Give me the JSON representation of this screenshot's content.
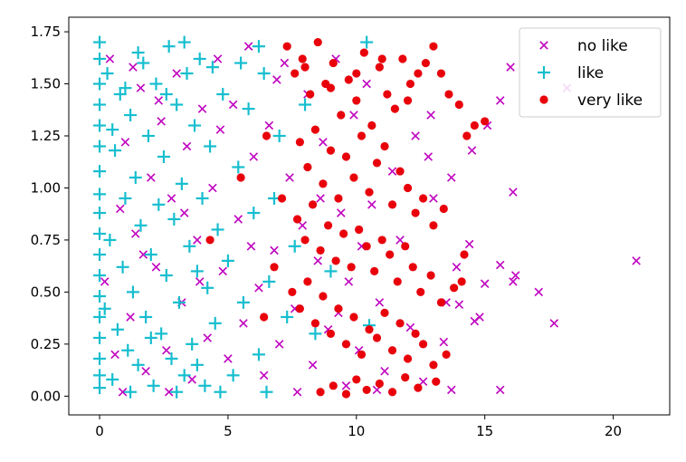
{
  "chart_data": {
    "type": "scatter",
    "title": "",
    "xlabel": "",
    "ylabel": "",
    "xlim": [
      -1.2,
      22.2
    ],
    "ylim": [
      -0.09,
      1.82
    ],
    "grid": false,
    "legend_position": "top-right",
    "x_ticks": [
      0,
      5,
      10,
      15,
      20
    ],
    "x_tick_labels": [
      "0",
      "5",
      "10",
      "15",
      "20"
    ],
    "y_ticks": [
      0.0,
      0.25,
      0.5,
      0.75,
      1.0,
      1.25,
      1.5,
      1.75
    ],
    "y_tick_labels": [
      "0.00",
      "0.25",
      "0.50",
      "0.75",
      "1.00",
      "1.25",
      "1.50",
      "1.75"
    ],
    "series": [
      {
        "name": "no like",
        "marker": "x",
        "color": "#bf00bf",
        "points": [
          [
            20.9,
            0.65
          ],
          [
            18.2,
            1.48
          ],
          [
            17.7,
            0.35
          ],
          [
            17.1,
            0.5
          ],
          [
            16.2,
            0.58
          ],
          [
            16.1,
            0.55
          ],
          [
            16.1,
            0.98
          ],
          [
            16.0,
            1.58
          ],
          [
            15.6,
            0.03
          ],
          [
            15.6,
            0.63
          ],
          [
            15.6,
            1.42
          ],
          [
            15.0,
            0.54
          ],
          [
            15.1,
            1.3
          ],
          [
            14.8,
            0.38
          ],
          [
            14.6,
            0.36
          ],
          [
            14.5,
            1.18
          ],
          [
            14.4,
            0.73
          ],
          [
            14.0,
            0.44
          ],
          [
            13.9,
            0.62
          ],
          [
            13.7,
            1.05
          ],
          [
            13.7,
            0.03
          ],
          [
            13.5,
            0.45
          ],
          [
            13.4,
            0.26
          ],
          [
            13.0,
            0.95
          ],
          [
            12.9,
            1.35
          ],
          [
            12.8,
            1.15
          ],
          [
            12.6,
            0.07
          ],
          [
            12.3,
            1.25
          ],
          [
            12.1,
            0.33
          ],
          [
            11.7,
            0.75
          ],
          [
            11.4,
            1.08
          ],
          [
            11.1,
            0.12
          ],
          [
            10.9,
            0.45
          ],
          [
            10.8,
            0.03
          ],
          [
            10.6,
            0.92
          ],
          [
            10.4,
            1.5
          ],
          [
            10.2,
            0.72
          ],
          [
            10.1,
            0.22
          ],
          [
            9.9,
            1.35
          ],
          [
            9.7,
            0.55
          ],
          [
            9.6,
            0.05
          ],
          [
            9.4,
            0.88
          ],
          [
            9.2,
            1.62
          ],
          [
            8.9,
            0.32
          ],
          [
            8.7,
            1.22
          ],
          [
            8.5,
            0.65
          ],
          [
            8.3,
            0.15
          ],
          [
            8.1,
            1.45
          ],
          [
            7.9,
            0.82
          ],
          [
            7.6,
            0.42
          ],
          [
            7.4,
            1.05
          ],
          [
            7.2,
            1.6
          ],
          [
            7.0,
            0.25
          ],
          [
            6.8,
            0.7
          ],
          [
            6.6,
            1.3
          ],
          [
            6.4,
            0.1
          ],
          [
            6.2,
            0.52
          ],
          [
            6.0,
            1.15
          ],
          [
            5.8,
            1.68
          ],
          [
            5.6,
            0.35
          ],
          [
            5.4,
            0.85
          ],
          [
            5.2,
            1.4
          ],
          [
            5.0,
            0.18
          ],
          [
            4.8,
            0.6
          ],
          [
            4.6,
            1.62
          ],
          [
            4.4,
            1.0
          ],
          [
            4.2,
            0.28
          ],
          [
            4.0,
            1.38
          ],
          [
            3.8,
            0.75
          ],
          [
            3.6,
            0.08
          ],
          [
            3.4,
            1.2
          ],
          [
            3.2,
            0.45
          ],
          [
            3.0,
            1.55
          ],
          [
            2.8,
            0.95
          ],
          [
            2.6,
            0.22
          ],
          [
            2.4,
            1.32
          ],
          [
            2.2,
            0.62
          ],
          [
            2.0,
            1.05
          ],
          [
            1.8,
            0.12
          ],
          [
            1.6,
            1.48
          ],
          [
            1.4,
            0.78
          ],
          [
            1.2,
            0.38
          ],
          [
            1.0,
            1.22
          ],
          [
            0.8,
            0.9
          ],
          [
            0.6,
            0.2
          ],
          [
            0.4,
            1.62
          ],
          [
            0.2,
            0.55
          ],
          [
            1.3,
            1.58
          ],
          [
            2.7,
            0.02
          ],
          [
            3.9,
            0.55
          ],
          [
            4.7,
            1.28
          ],
          [
            5.9,
            0.72
          ],
          [
            6.9,
            1.52
          ],
          [
            7.7,
            0.02
          ],
          [
            8.6,
            0.95
          ],
          [
            9.3,
            0.4
          ],
          [
            2.3,
            1.42
          ],
          [
            3.3,
            0.88
          ],
          [
            1.7,
            0.68
          ],
          [
            0.9,
            0.02
          ]
        ]
      },
      {
        "name": "like",
        "marker": "+",
        "color": "#17becf",
        "points": [
          [
            0.0,
            1.7
          ],
          [
            0.0,
            1.62
          ],
          [
            0.0,
            1.5
          ],
          [
            0.0,
            1.4
          ],
          [
            0.0,
            1.3
          ],
          [
            0.0,
            1.2
          ],
          [
            0.0,
            1.08
          ],
          [
            0.0,
            0.97
          ],
          [
            0.0,
            0.88
          ],
          [
            0.0,
            0.78
          ],
          [
            0.0,
            0.68
          ],
          [
            0.0,
            0.58
          ],
          [
            0.0,
            0.48
          ],
          [
            0.0,
            0.38
          ],
          [
            0.0,
            0.28
          ],
          [
            0.0,
            0.18
          ],
          [
            0.0,
            0.1
          ],
          [
            0.0,
            0.04
          ],
          [
            0.2,
            0.42
          ],
          [
            0.3,
            1.55
          ],
          [
            0.4,
            0.75
          ],
          [
            0.5,
            0.08
          ],
          [
            0.6,
            1.18
          ],
          [
            0.7,
            0.32
          ],
          [
            0.8,
            1.45
          ],
          [
            0.9,
            0.62
          ],
          [
            1.0,
            0.95
          ],
          [
            1.1,
            0.22
          ],
          [
            1.2,
            1.35
          ],
          [
            1.3,
            0.5
          ],
          [
            1.4,
            1.05
          ],
          [
            1.5,
            0.15
          ],
          [
            1.6,
            0.82
          ],
          [
            1.7,
            1.6
          ],
          [
            1.8,
            0.38
          ],
          [
            1.9,
            1.25
          ],
          [
            2.0,
            0.68
          ],
          [
            2.1,
            0.05
          ],
          [
            2.2,
            1.5
          ],
          [
            2.3,
            0.92
          ],
          [
            2.4,
            0.3
          ],
          [
            2.5,
            1.15
          ],
          [
            2.6,
            0.58
          ],
          [
            2.7,
            1.68
          ],
          [
            2.8,
            0.18
          ],
          [
            2.9,
            0.85
          ],
          [
            3.0,
            1.4
          ],
          [
            3.1,
            0.45
          ],
          [
            3.2,
            1.02
          ],
          [
            3.3,
            0.1
          ],
          [
            3.4,
            1.55
          ],
          [
            3.5,
            0.72
          ],
          [
            3.6,
            0.25
          ],
          [
            3.7,
            1.3
          ],
          [
            3.8,
            0.6
          ],
          [
            3.9,
            1.62
          ],
          [
            4.0,
            0.95
          ],
          [
            4.1,
            0.05
          ],
          [
            4.2,
            0.52
          ],
          [
            4.3,
            1.2
          ],
          [
            4.5,
            0.35
          ],
          [
            4.6,
            0.8
          ],
          [
            4.8,
            1.45
          ],
          [
            5.0,
            0.65
          ],
          [
            5.2,
            0.1
          ],
          [
            5.4,
            1.1
          ],
          [
            5.6,
            0.45
          ],
          [
            5.8,
            1.38
          ],
          [
            6.0,
            0.88
          ],
          [
            6.2,
            0.2
          ],
          [
            6.4,
            1.55
          ],
          [
            6.6,
            0.55
          ],
          [
            6.8,
            0.95
          ],
          [
            7.0,
            1.25
          ],
          [
            7.3,
            0.38
          ],
          [
            7.6,
            0.72
          ],
          [
            8.0,
            1.4
          ],
          [
            8.4,
            0.3
          ],
          [
            9.0,
            0.6
          ],
          [
            10.4,
            1.7
          ],
          [
            10.5,
            0.34
          ],
          [
            6.2,
            1.68
          ],
          [
            5.5,
            1.6
          ],
          [
            4.4,
            1.58
          ],
          [
            3.3,
            1.7
          ],
          [
            2.6,
            1.45
          ],
          [
            1.5,
            1.65
          ],
          [
            1.0,
            1.48
          ],
          [
            0.5,
            1.28
          ],
          [
            1.2,
            0.02
          ],
          [
            2.0,
            0.28
          ],
          [
            3.0,
            0.02
          ],
          [
            3.8,
            0.15
          ],
          [
            4.7,
            0.02
          ],
          [
            6.5,
            0.02
          ]
        ]
      },
      {
        "name": "very like",
        "marker": "o",
        "color": "#e8000b",
        "points": [
          [
            7.3,
            1.68
          ],
          [
            7.6,
            1.55
          ],
          [
            7.9,
            1.62
          ],
          [
            8.2,
            1.45
          ],
          [
            8.5,
            1.7
          ],
          [
            8.8,
            1.5
          ],
          [
            9.1,
            1.6
          ],
          [
            9.4,
            1.35
          ],
          [
            9.7,
            1.52
          ],
          [
            10.0,
            1.42
          ],
          [
            10.3,
            1.65
          ],
          [
            10.6,
            1.3
          ],
          [
            10.9,
            1.58
          ],
          [
            11.2,
            1.45
          ],
          [
            11.5,
            1.38
          ],
          [
            11.8,
            1.62
          ],
          [
            12.1,
            1.5
          ],
          [
            12.4,
            1.55
          ],
          [
            12.7,
            1.6
          ],
          [
            13.0,
            1.68
          ],
          [
            13.3,
            1.55
          ],
          [
            13.6,
            1.45
          ],
          [
            14.0,
            1.4
          ],
          [
            14.3,
            1.25
          ],
          [
            14.6,
            1.3
          ],
          [
            7.8,
            1.22
          ],
          [
            8.1,
            1.1
          ],
          [
            8.4,
            1.28
          ],
          [
            8.7,
            1.02
          ],
          [
            9.0,
            1.18
          ],
          [
            9.3,
            0.95
          ],
          [
            9.6,
            1.15
          ],
          [
            9.9,
            1.05
          ],
          [
            10.2,
            1.25
          ],
          [
            10.5,
            0.98
          ],
          [
            10.8,
            1.12
          ],
          [
            11.1,
            1.2
          ],
          [
            11.4,
            0.92
          ],
          [
            11.7,
            1.08
          ],
          [
            12.0,
            1.0
          ],
          [
            12.3,
            0.88
          ],
          [
            12.6,
            0.95
          ],
          [
            13.0,
            0.82
          ],
          [
            13.4,
            0.9
          ],
          [
            14.2,
            0.68
          ],
          [
            7.7,
            0.85
          ],
          [
            8.0,
            0.75
          ],
          [
            8.3,
            0.92
          ],
          [
            8.6,
            0.7
          ],
          [
            8.9,
            0.82
          ],
          [
            9.2,
            0.65
          ],
          [
            9.5,
            0.78
          ],
          [
            9.8,
            0.62
          ],
          [
            10.1,
            0.8
          ],
          [
            10.4,
            0.72
          ],
          [
            10.7,
            0.6
          ],
          [
            11.0,
            0.75
          ],
          [
            11.3,
            0.68
          ],
          [
            11.6,
            0.55
          ],
          [
            11.9,
            0.72
          ],
          [
            12.2,
            0.62
          ],
          [
            12.5,
            0.5
          ],
          [
            12.9,
            0.58
          ],
          [
            13.3,
            0.45
          ],
          [
            13.8,
            0.52
          ],
          [
            7.5,
            0.5
          ],
          [
            7.8,
            0.42
          ],
          [
            8.1,
            0.55
          ],
          [
            8.4,
            0.35
          ],
          [
            8.7,
            0.48
          ],
          [
            9.0,
            0.3
          ],
          [
            9.3,
            0.42
          ],
          [
            9.6,
            0.25
          ],
          [
            9.9,
            0.38
          ],
          [
            10.2,
            0.2
          ],
          [
            10.5,
            0.32
          ],
          [
            10.8,
            0.28
          ],
          [
            11.1,
            0.4
          ],
          [
            11.4,
            0.22
          ],
          [
            11.7,
            0.35
          ],
          [
            12.0,
            0.18
          ],
          [
            12.3,
            0.3
          ],
          [
            12.6,
            0.25
          ],
          [
            13.0,
            0.15
          ],
          [
            13.5,
            0.2
          ],
          [
            8.6,
            0.02
          ],
          [
            9.1,
            0.05
          ],
          [
            9.6,
            0.01
          ],
          [
            10.0,
            0.08
          ],
          [
            10.4,
            0.03
          ],
          [
            10.9,
            0.06
          ],
          [
            11.4,
            0.02
          ],
          [
            11.9,
            0.09
          ],
          [
            12.4,
            0.04
          ],
          [
            13.1,
            0.07
          ],
          [
            6.4,
            0.38
          ],
          [
            6.8,
            0.62
          ],
          [
            7.1,
            0.95
          ],
          [
            6.5,
            1.25
          ],
          [
            5.5,
            1.05
          ],
          [
            4.3,
            0.75
          ],
          [
            10.0,
            1.55
          ],
          [
            11.0,
            1.62
          ],
          [
            12.0,
            1.42
          ],
          [
            9.0,
            1.48
          ],
          [
            8.0,
            1.58
          ],
          [
            15.0,
            1.32
          ],
          [
            14.1,
            0.55
          ]
        ]
      }
    ]
  }
}
